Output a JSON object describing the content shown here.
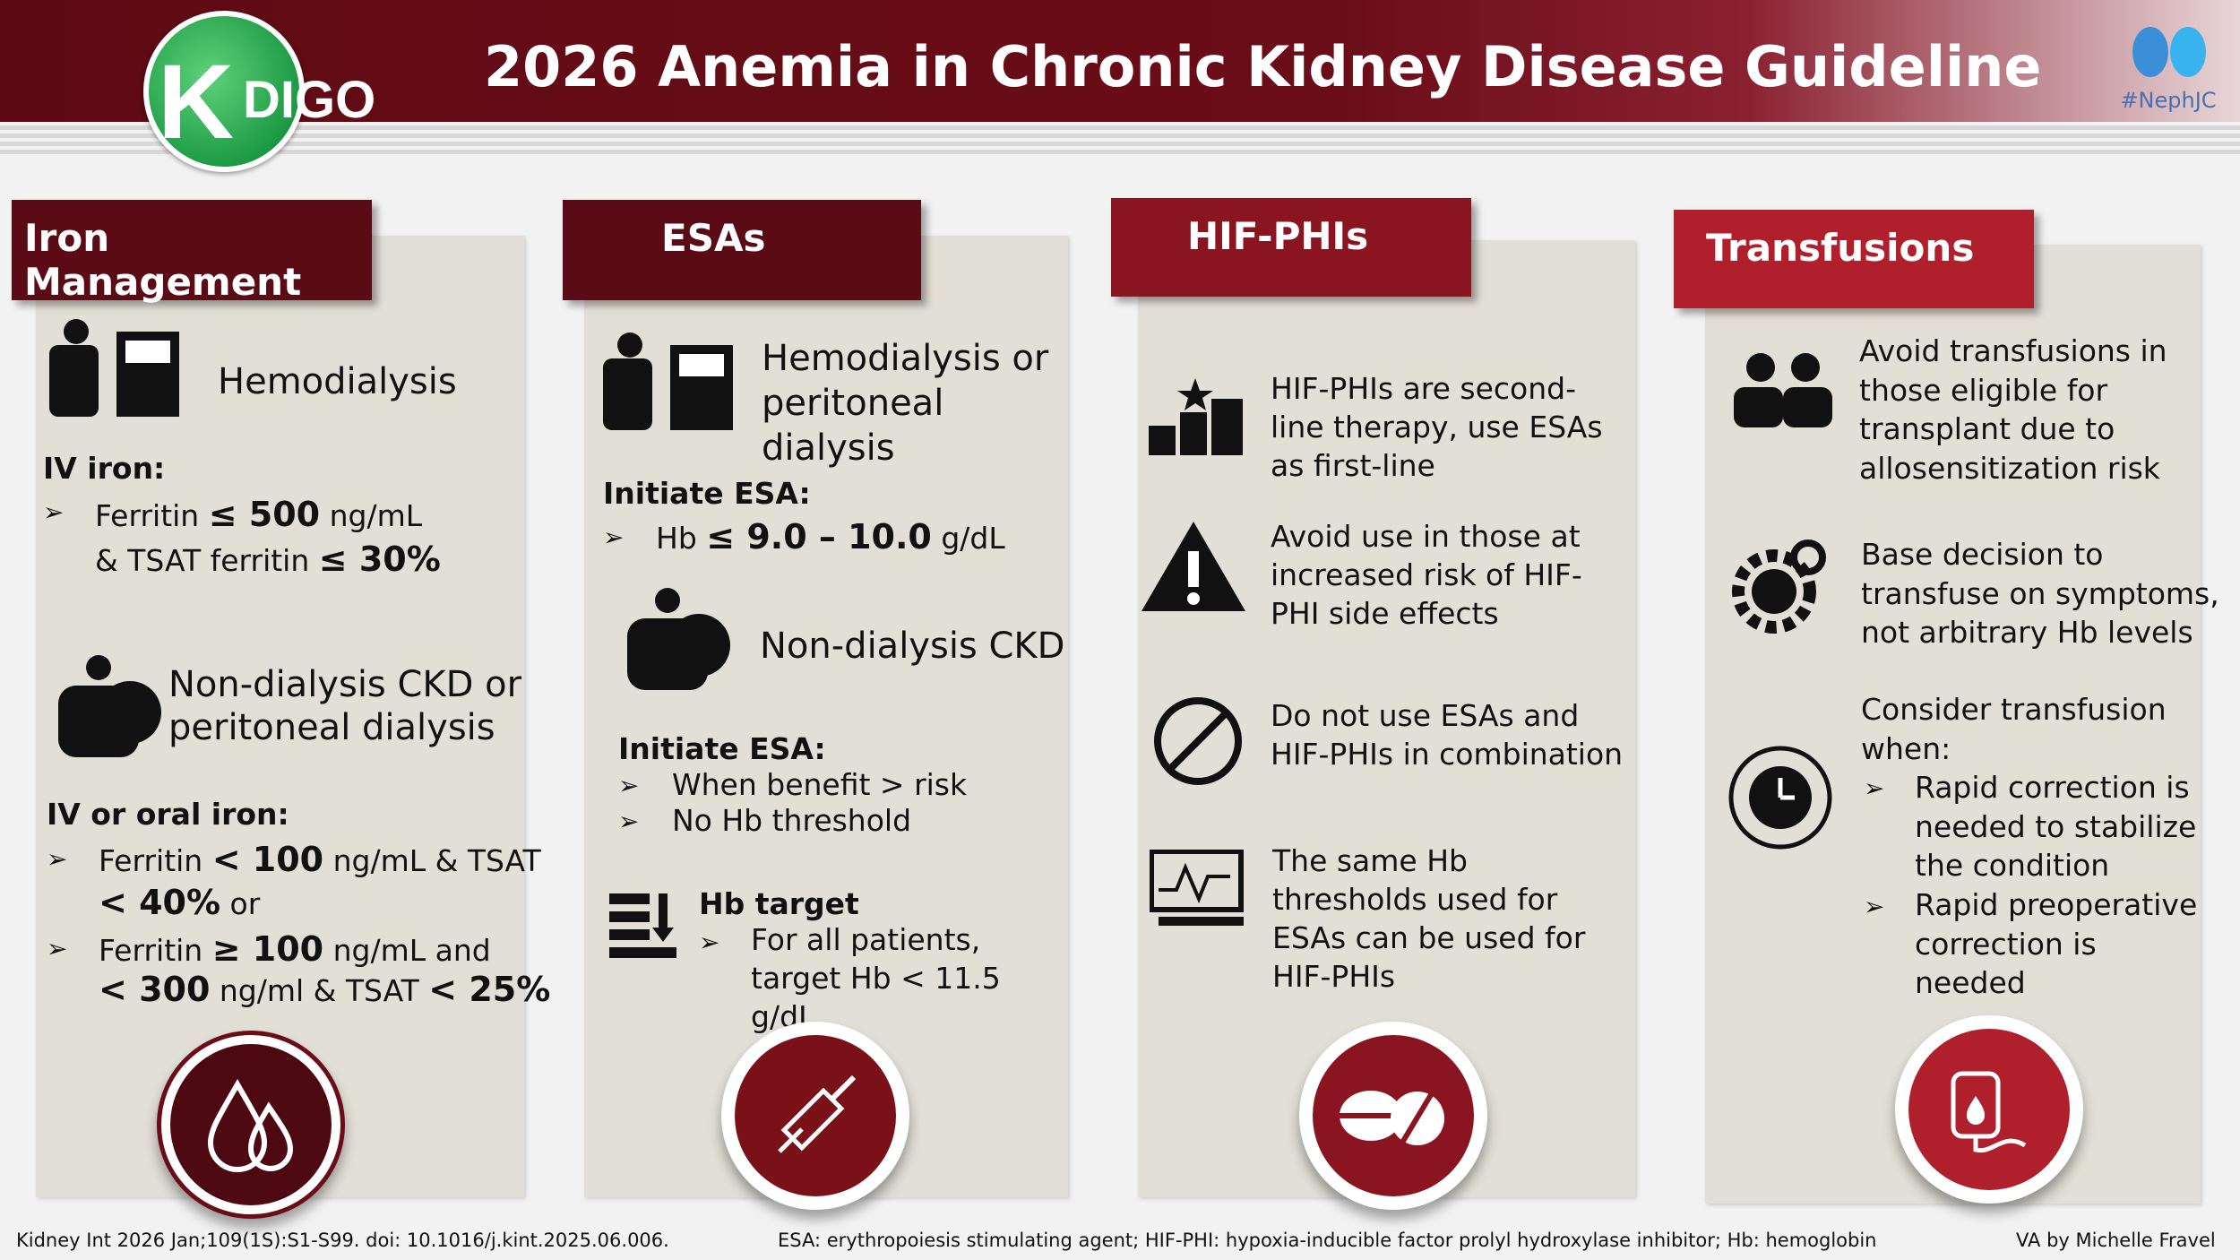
{
  "header": {
    "title": "2026 Anemia in Chronic Kidney Disease Guideline",
    "logo_text": "KDIGO",
    "badge": "#NephJC"
  },
  "colors": {
    "header": "#5e0a14",
    "tab_dark": "#5a0b16",
    "tab_red": "#b0202c",
    "panel": "#e2dfd6"
  },
  "iron": {
    "tab": "Iron Management",
    "hd": "Hemodialysis",
    "iv_label": "IV iron:",
    "iv_l1a": "Ferritin ",
    "iv_l1b": "≤ 500",
    "iv_l1c": " ng/mL",
    "iv_l2a": "& TSAT ferritin ",
    "iv_l2b": "≤ 30%",
    "nd": "Non-dialysis CKD or peritoneal dialysis",
    "oral_label": "IV or oral iron:",
    "o1a": "Ferritin ",
    "o1b": "< 100",
    "o1c": " ng/mL & TSAT",
    "o2a": "< 40%",
    "o2b": " or",
    "o3a": "Ferritin ",
    "o3b": "≥ 100",
    "o3c": " ng/mL and",
    "o4a": "< 300",
    "o4b": " ng/ml & TSAT ",
    "o4c": "< 25%"
  },
  "esa": {
    "tab": "ESAs",
    "hd": "Hemodialysis or peritoneal dialysis",
    "init1": "Initiate ESA:",
    "hb1a": "Hb ",
    "hb1b": "≤ 9.0 – 10.0",
    "hb1c": " g/dL",
    "nd": "Non-dialysis CKD",
    "init2": "Initiate ESA:",
    "b1": "When benefit > risk",
    "b2": "No Hb threshold",
    "target_label": "Hb target",
    "target_text": "For all patients, target Hb < 11.5 g/dL"
  },
  "hif": {
    "tab": "HIF-PHIs",
    "i1": "HIF-PHIs are second-line therapy, use ESAs as first-line",
    "i2": "Avoid use in those at increased risk of HIF-PHI side effects",
    "i3": "Do not use ESAs and HIF-PHIs in combination",
    "i4": "The same Hb thresholds used for ESAs can be used for HIF-PHIs"
  },
  "trans": {
    "tab": "Transfusions",
    "i1": "Avoid transfusions in those eligible for transplant due to allosensitization risk",
    "i2": "Base decision to transfuse on symptoms, not arbitrary Hb levels",
    "i3": "Consider transfusion when:",
    "b1": "Rapid correction is needed to stabilize the condition",
    "b2": "Rapid preoperative correction is needed"
  },
  "footer": {
    "citation": "Kidney Int 2026 Jan;109(1S):S1-S99. doi: 10.1016/j.kint.2025.06.006.",
    "abbrev": "ESA: erythropoiesis stimulating agent; HIF-PHI: hypoxia-inducible factor prolyl hydroxylase inhibitor; Hb: hemoglobin",
    "credit": "VA by Michelle Fravel"
  }
}
